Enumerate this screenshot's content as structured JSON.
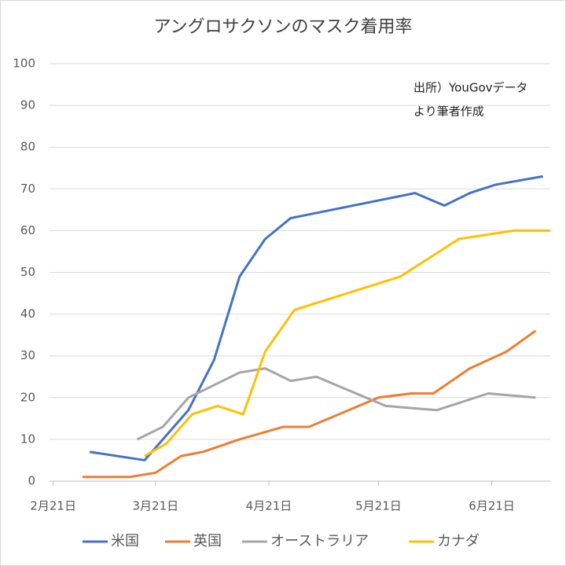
{
  "chart_data": {
    "type": "line",
    "title": "アングロサクソンのマスク着用率",
    "annotations": [
      "出所）YouGovデータ",
      "より筆者作成"
    ],
    "xlim": [
      "02-20",
      "07-07"
    ],
    "xticks": [
      {
        "value": "02-21",
        "label": "2月21日"
      },
      {
        "value": "03-21",
        "label": "3月21日"
      },
      {
        "value": "04-21",
        "label": "4月21日"
      },
      {
        "value": "05-21",
        "label": "5月21日"
      },
      {
        "value": "06-21",
        "label": "6月21日"
      }
    ],
    "ylim": [
      0,
      100
    ],
    "yticks": [
      0,
      10,
      20,
      30,
      40,
      50,
      60,
      70,
      80,
      90,
      100
    ],
    "grid": true,
    "legend": "bottom",
    "series": [
      {
        "name": "米国",
        "color": "#4472c4",
        "x": [
          "03-03",
          "03-18",
          "03-30",
          "04-06",
          "04-13",
          "04-20",
          "04-27",
          "05-31",
          "06-08",
          "06-15",
          "06-22",
          "07-05"
        ],
        "values": [
          7,
          5,
          17,
          29,
          49,
          58,
          63,
          69,
          66,
          69,
          71,
          73
        ]
      },
      {
        "name": "英国",
        "color": "#ed7d31",
        "x": [
          "03-01",
          "03-14",
          "03-21",
          "03-28",
          "04-03",
          "04-13",
          "04-25",
          "05-02",
          "05-21",
          "05-30",
          "06-05",
          "06-15",
          "06-25",
          "07-03"
        ],
        "values": [
          1,
          1,
          2,
          6,
          7,
          10,
          13,
          13,
          20,
          21,
          21,
          27,
          31,
          36
        ]
      },
      {
        "name": "オーストラリア",
        "color": "#a5a5a5",
        "x": [
          "03-16",
          "03-23",
          "03-30",
          "04-13",
          "04-20",
          "04-27",
          "05-04",
          "05-23",
          "06-06",
          "06-20",
          "07-03"
        ],
        "values": [
          10,
          13,
          20,
          26,
          27,
          24,
          25,
          18,
          17,
          21,
          20
        ]
      },
      {
        "name": "カナダ",
        "color": "#ffc000",
        "x": [
          "03-18",
          "03-24",
          "03-31",
          "04-07",
          "04-14",
          "04-20",
          "04-28",
          "05-27",
          "06-12",
          "06-27",
          "07-07"
        ],
        "values": [
          6,
          9,
          16,
          18,
          16,
          31,
          41,
          49,
          58,
          60,
          60
        ]
      }
    ]
  }
}
